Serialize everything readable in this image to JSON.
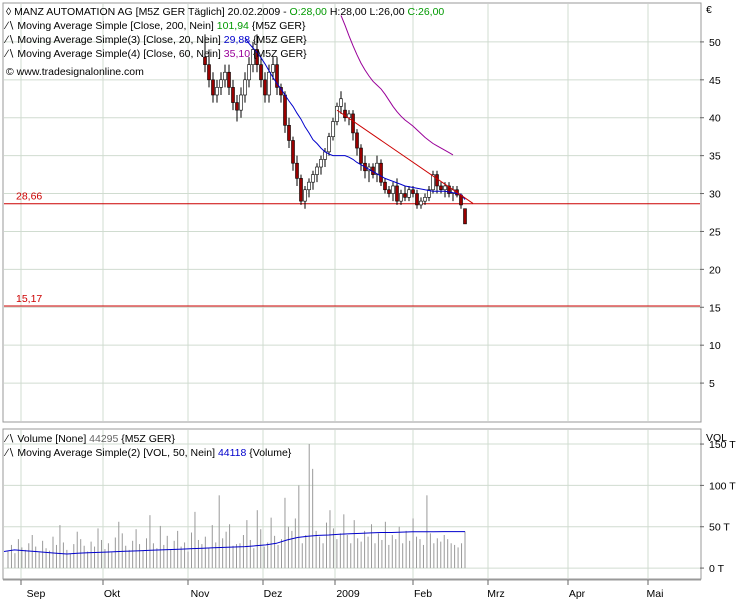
{
  "chart_data": [
    {
      "type": "candlestick",
      "panel": "price",
      "axis_unit": "€",
      "ylim": [
        0,
        55
      ],
      "yticks": [
        5,
        10,
        15,
        20,
        25,
        30,
        35,
        40,
        45,
        50
      ],
      "x_labels": [
        "Sep",
        "Okt",
        "Nov",
        "Dez",
        "2009",
        "Feb",
        "Mrz",
        "Apr",
        "Mai"
      ],
      "legend": [
        {
          "prefix": "◊ MANZ AUTOMATION AG [M5Z GER  Täglich] 20.02.2009 - ",
          "o": "O:28,00",
          "h": "H:28,00",
          "l": "L:26,00",
          "c": "C:26,00",
          "color_c": "#009900"
        },
        {
          "text": "Moving Average Simple [Close, 200, Nein]",
          "value": "101,94",
          "suffix": "{M5Z GER}",
          "color": "#009900"
        },
        {
          "text": "Moving Average Simple(3) [Close, 20, Nein]",
          "value": "29,88",
          "suffix": "{M5Z GER}",
          "color": "#0000cc"
        },
        {
          "text": "Moving Average Simple(4) [Close, 60, Nein]",
          "value": "35,10",
          "suffix": "{M5Z GER}",
          "color": "#990099"
        },
        {
          "text": "© www.tradesignalonline.com"
        }
      ],
      "hlines": [
        {
          "label": "28,66",
          "value": 28.66,
          "color": "#cc0000"
        },
        {
          "label": "15,17",
          "value": 15.17,
          "color": "#cc0000"
        }
      ],
      "colors": {
        "up": "#ffffff",
        "down": "#990000",
        "wick": "#000000",
        "trend": "#cc0000"
      },
      "candles": [
        [
          48,
          51,
          46,
          47
        ],
        [
          47,
          49,
          44,
          45
        ],
        [
          45,
          46,
          42,
          43
        ],
        [
          43,
          45,
          42,
          44
        ],
        [
          44,
          46,
          43,
          45
        ],
        [
          45,
          47,
          44,
          46
        ],
        [
          46,
          47,
          43,
          44
        ],
        [
          44,
          45,
          41,
          42
        ],
        [
          42,
          43,
          39.5,
          41
        ],
        [
          41,
          44,
          40,
          43
        ],
        [
          43,
          46,
          42,
          45
        ],
        [
          45,
          48,
          44,
          47
        ],
        [
          47,
          50,
          46,
          49
        ],
        [
          49,
          51,
          46,
          47
        ],
        [
          47,
          48,
          44,
          45
        ],
        [
          45,
          46,
          42,
          43
        ],
        [
          43,
          47,
          42,
          46
        ],
        [
          46,
          48,
          45,
          47
        ],
        [
          47,
          48,
          43,
          44
        ],
        [
          44,
          44.5,
          42,
          43
        ],
        [
          43,
          43.5,
          38,
          39
        ],
        [
          39,
          40,
          36,
          37
        ],
        [
          37,
          37.5,
          33,
          34
        ],
        [
          34,
          35,
          31,
          32
        ],
        [
          32,
          32.5,
          28.5,
          29
        ],
        [
          29,
          31,
          28,
          30.5
        ],
        [
          30.5,
          32,
          29.5,
          31.5
        ],
        [
          31.5,
          33,
          30.5,
          32.5
        ],
        [
          32.5,
          34,
          31.5,
          33.5
        ],
        [
          33.5,
          35,
          32.5,
          34.5
        ],
        [
          34.5,
          36,
          33.5,
          35.5
        ],
        [
          35.5,
          38,
          35,
          37.5
        ],
        [
          37.5,
          40,
          37,
          39.5
        ],
        [
          39.5,
          42,
          39,
          41.5
        ],
        [
          41.5,
          43.5,
          40.5,
          42.5
        ],
        [
          41,
          42,
          39.5,
          40
        ],
        [
          40,
          41,
          39,
          40.5
        ],
        [
          40.5,
          41,
          37,
          38
        ],
        [
          38,
          38.5,
          35,
          36
        ],
        [
          36,
          36.5,
          33,
          34
        ],
        [
          34,
          35,
          32,
          33
        ],
        [
          33,
          34,
          31.5,
          33.5
        ],
        [
          33.5,
          34,
          32,
          32.5
        ],
        [
          32.5,
          35,
          31.5,
          34
        ],
        [
          34,
          34.5,
          31,
          31.5
        ],
        [
          31.5,
          32,
          30,
          30.5
        ],
        [
          30.5,
          31,
          29.5,
          30
        ],
        [
          30,
          31.5,
          29,
          31
        ],
        [
          31,
          32,
          28.5,
          29
        ],
        [
          29,
          30.5,
          28.5,
          30
        ],
        [
          30,
          31,
          29,
          29.5
        ],
        [
          29.5,
          31,
          29,
          30.5
        ],
        [
          30.5,
          31,
          29.5,
          30
        ],
        [
          30,
          30.5,
          28,
          28.5
        ],
        [
          28.5,
          29.5,
          28,
          29
        ],
        [
          29,
          30,
          28.5,
          29.5
        ],
        [
          29.5,
          31,
          29,
          30.5
        ],
        [
          30.5,
          33,
          30,
          32.5
        ],
        [
          32.5,
          33,
          30,
          31
        ],
        [
          31,
          31.5,
          30,
          30.5
        ],
        [
          30.5,
          31.5,
          29.5,
          31
        ],
        [
          31,
          31.5,
          29.5,
          30
        ],
        [
          30,
          31,
          29,
          30.5
        ],
        [
          30.5,
          31,
          29.5,
          29.8
        ],
        [
          29.8,
          30,
          28,
          28.5
        ],
        [
          28,
          28,
          26,
          26
        ]
      ],
      "ma20": [
        null,
        null,
        null,
        null,
        null,
        null,
        null,
        null,
        null,
        null,
        50.5,
        49.8,
        49.2,
        48.6,
        47.9,
        47.1,
        46.2,
        45.3,
        44.5,
        43.8,
        43,
        42.2,
        41.5,
        40.6,
        39.8,
        38.8,
        38,
        37.1,
        36.6,
        36,
        35.5,
        35.2,
        35,
        35,
        35,
        35,
        34.8,
        34.5,
        34.1,
        33.8,
        33.5,
        33.2,
        32.9,
        32.6,
        32.3,
        32,
        31.8,
        31.6,
        31.4,
        31.2,
        31,
        30.9,
        30.8,
        30.7,
        30.6,
        30.5,
        30.4,
        30.3,
        30.3,
        30.3,
        30.3,
        30.2,
        30.1,
        30,
        29.9,
        29.2
      ],
      "ma60": [
        null,
        null,
        null,
        null,
        null,
        null,
        null,
        null,
        null,
        null,
        null,
        null,
        null,
        null,
        null,
        null,
        null,
        null,
        null,
        null,
        null,
        null,
        null,
        null,
        null,
        null,
        null,
        null,
        null,
        null,
        null,
        null,
        null,
        null,
        53.5,
        52.2,
        50.8,
        49.5,
        48.3,
        47.2,
        46.3,
        45.5,
        44.8,
        44.3,
        43.8,
        43.1,
        42.3,
        41.5,
        40.8,
        40.2,
        39.7,
        39.3,
        38.9,
        38.4,
        37.9,
        37.4,
        37,
        36.6,
        36.3,
        36,
        35.7,
        35.4,
        35.1,
        null,
        null,
        null
      ],
      "trendline": {
        "from": [
          33,
          41
        ],
        "to": [
          65,
          28.7
        ]
      }
    },
    {
      "type": "bar",
      "panel": "volume",
      "axis_unit": "VOL",
      "ylim": [
        -12000,
        167000
      ],
      "yticks": [
        0,
        50000,
        100000,
        150000
      ],
      "ytick_labels": [
        "0 T",
        "50 T",
        "100 T",
        "150 T"
      ],
      "legend": [
        {
          "text": "Volume [None]",
          "value": "44295",
          "suffix": "{M5Z GER}",
          "color": "#666666"
        },
        {
          "text": "Moving Average Simple(2) [VOL, 50, Nein]",
          "value": "44118",
          "suffix": "{Volume}",
          "color": "#0000cc"
        }
      ],
      "colors": {
        "bar": "#999999",
        "ma": "#0000cc"
      },
      "volume": [
        20000,
        28000,
        18000,
        35000,
        25000,
        22000,
        30000,
        40000,
        26000,
        19000,
        33000,
        24000,
        21000,
        38000,
        28000,
        52000,
        31000,
        22000,
        17000,
        29000,
        44000,
        35000,
        27000,
        20000,
        32000,
        26000,
        48000,
        34000,
        23000,
        30000,
        19000,
        37000,
        56000,
        42000,
        27000,
        22000,
        33000,
        47000,
        29000,
        21000,
        36000,
        64000,
        30000,
        24000,
        51000,
        28000,
        39000,
        22000,
        33000,
        45000,
        26000,
        31000,
        20000,
        43000,
        68000,
        34000,
        29000,
        38000,
        24000,
        52000,
        31000,
        88000,
        36000,
        44000,
        53000,
        27000,
        29000,
        30000,
        40000,
        58000,
        34000,
        24000,
        70000,
        47000,
        26000,
        31000,
        61000,
        39000,
        28000,
        35000,
        85000,
        50000,
        45000,
        60000,
        100000,
        30000,
        40000,
        150000,
        120000,
        45000,
        38000,
        30000,
        55000,
        70000,
        48000,
        35000,
        42000,
        65000,
        40000,
        30000,
        58000,
        36000,
        32000,
        45000,
        38000,
        53000,
        30000,
        42000,
        34000,
        56000,
        28000,
        40000,
        35000,
        50000,
        30000,
        45000,
        33000,
        60000,
        38000,
        35000,
        28000,
        88000,
        42000,
        30000,
        36000,
        32000,
        40000,
        35000,
        30000,
        28000,
        25000,
        30000,
        44295
      ],
      "volume_ma": [
        20000,
        22000,
        21000,
        20000,
        19000,
        18000,
        17000,
        18000,
        18500,
        19000,
        19500,
        20000,
        20500,
        21000,
        21500,
        22000,
        22500,
        23000,
        23500,
        24000,
        24500,
        25000,
        25500,
        26000,
        27000,
        28000,
        30000,
        34000,
        37000,
        38500,
        39500,
        40000,
        41000,
        41500,
        42000,
        42500,
        43000,
        43000,
        43500,
        44000,
        44000,
        44000,
        44100,
        44100,
        44118
      ]
    }
  ]
}
